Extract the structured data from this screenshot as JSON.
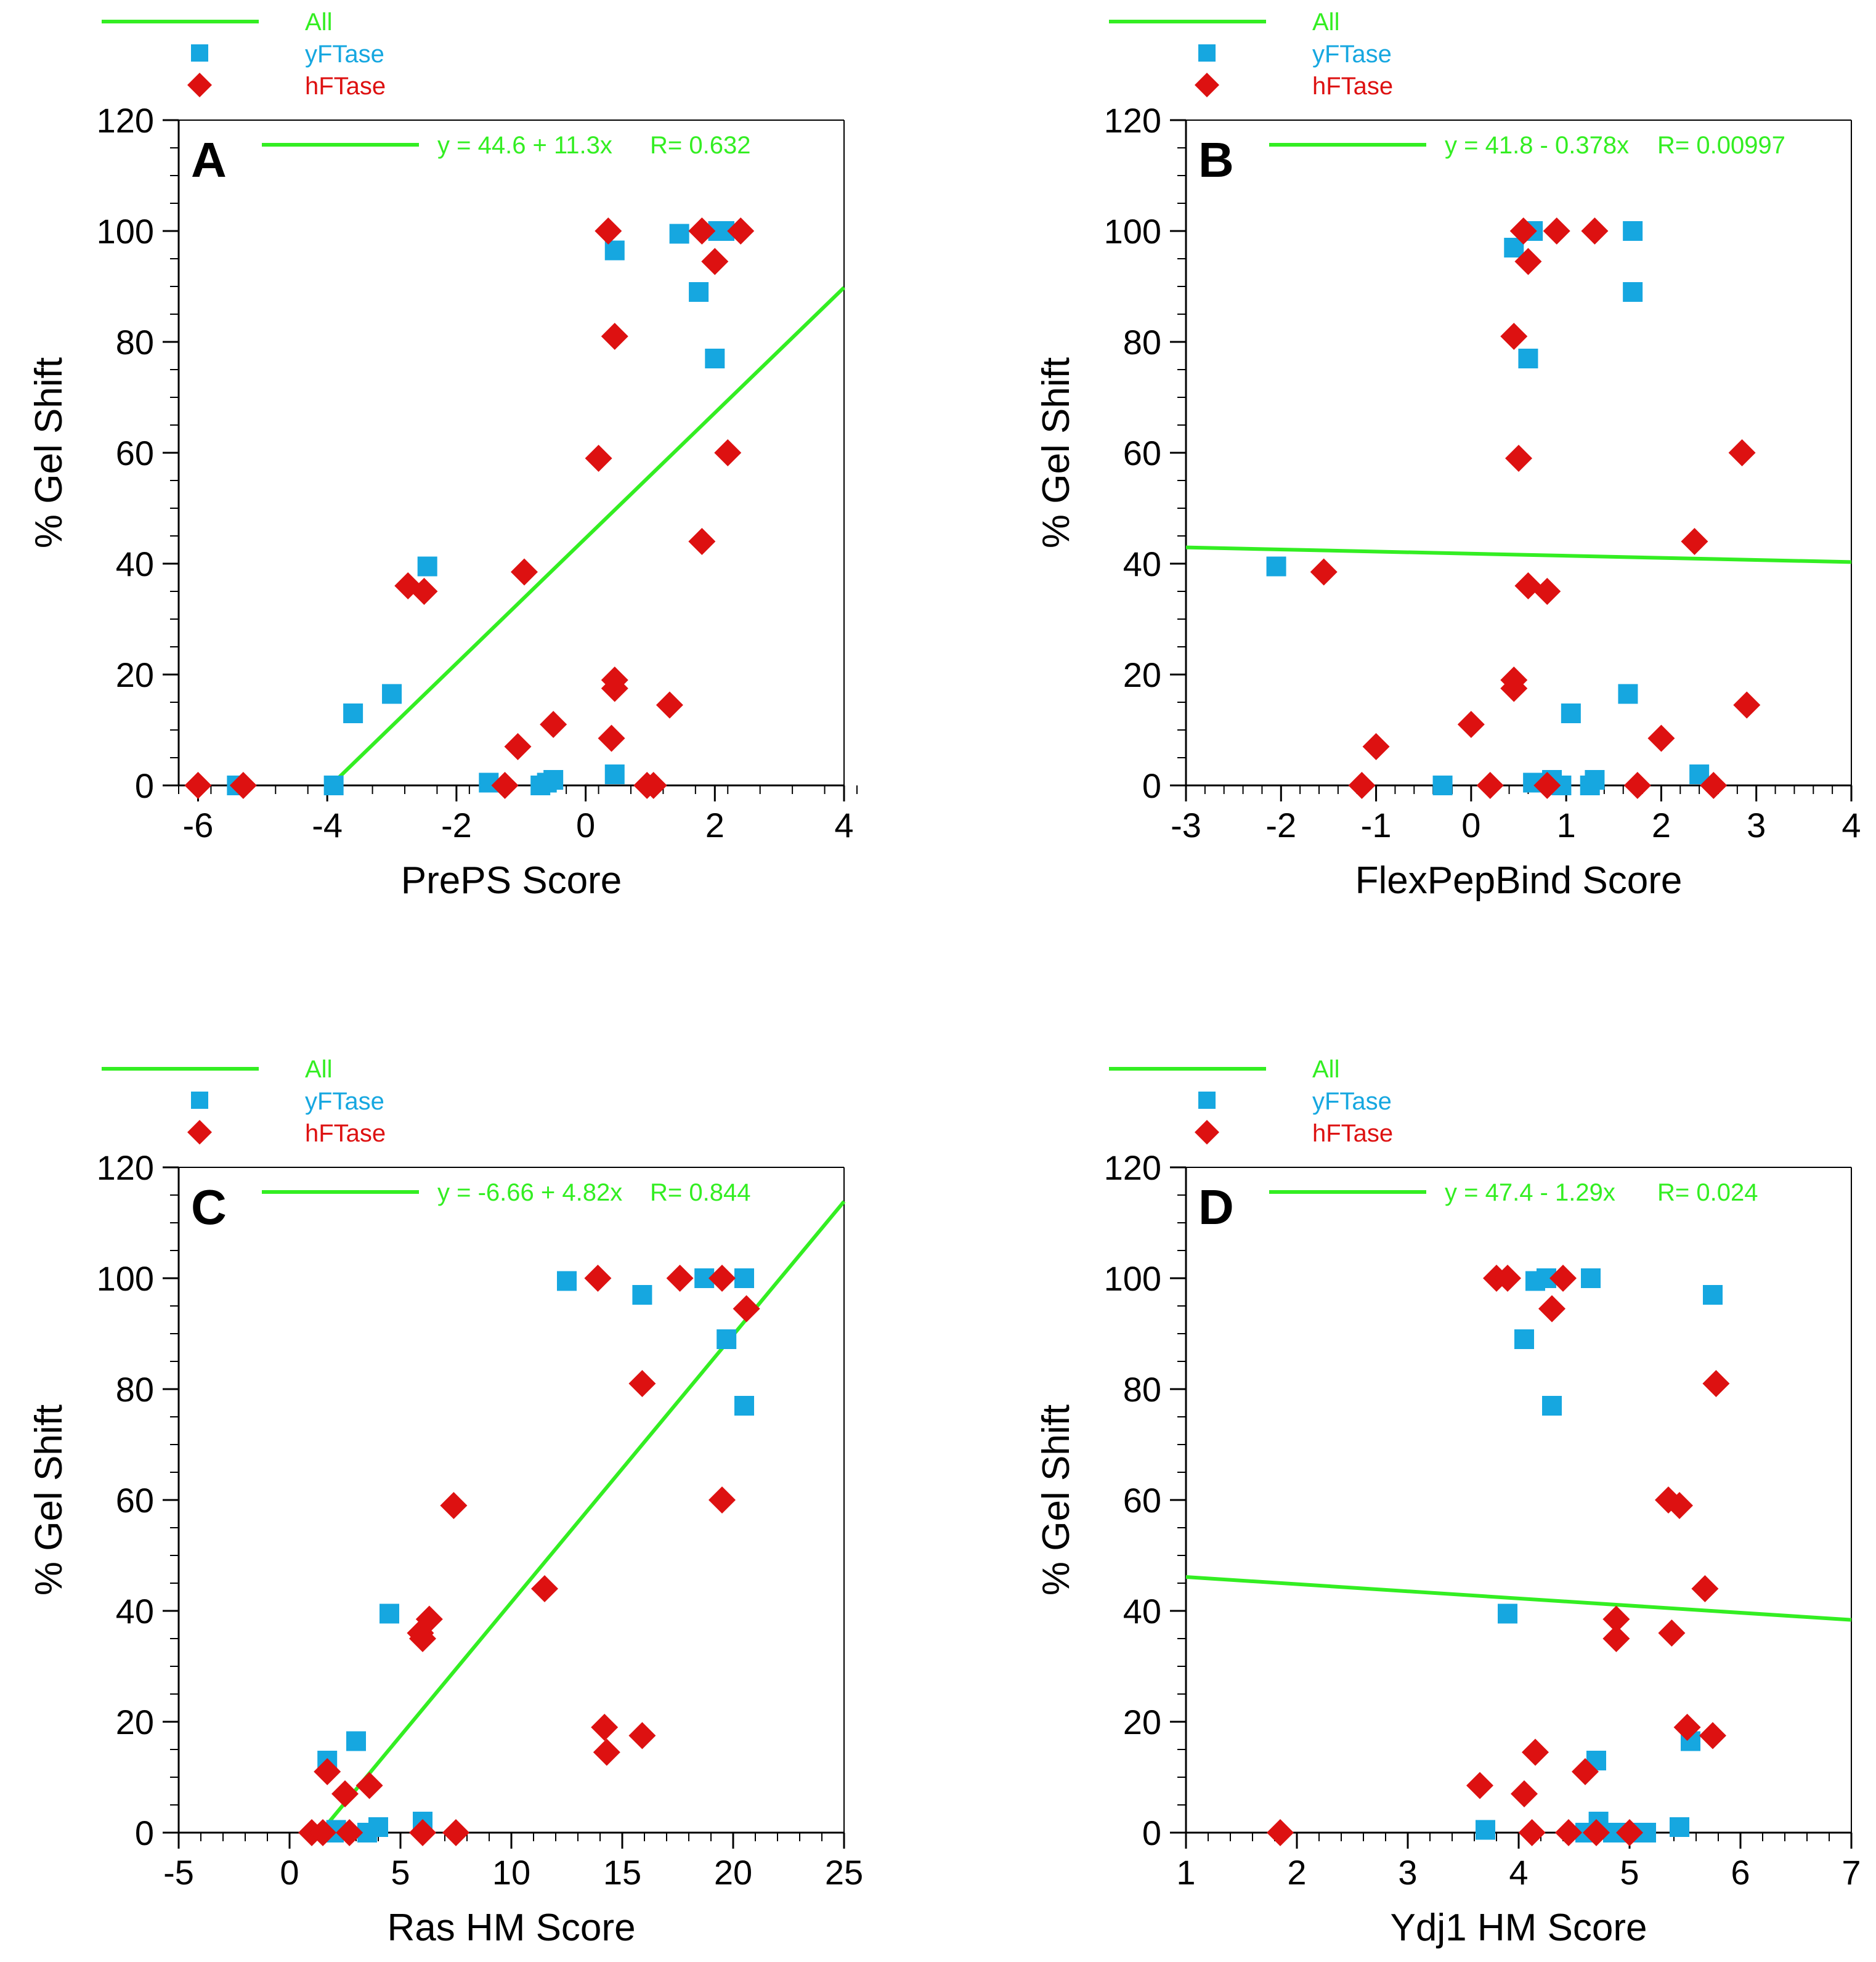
{
  "colors": {
    "all": "#33ee22",
    "yftase": "#16a7e0",
    "hftase": "#dd1111",
    "axis": "#000000"
  },
  "legend": {
    "all": "All",
    "yftase": "yFTase",
    "hftase": "hFTase"
  },
  "chart_data": [
    {
      "panel": "A",
      "type": "scatter",
      "xlabel": "PrePS Score",
      "ylabel": "% Gel Shift",
      "xlim": [
        -6.3,
        4
      ],
      "ylim": [
        0,
        120
      ],
      "xticks": [
        -6,
        -4,
        -2,
        0,
        2,
        4
      ],
      "xminor": 0.5,
      "yticks": [
        0,
        20,
        40,
        60,
        80,
        100,
        120
      ],
      "fit": {
        "label": "y = 44.6 + 11.3x",
        "r": "R= 0.632",
        "intercept": 44.6,
        "slope": 11.3,
        "x_start": -3.95,
        "x_end": 4
      },
      "series": [
        {
          "name": "yFTase",
          "marker": "square",
          "points": [
            [
              -5.4,
              0
            ],
            [
              -3.9,
              0
            ],
            [
              -3.6,
              13
            ],
            [
              -3.0,
              16.5
            ],
            [
              -2.45,
              39.5
            ],
            [
              -1.5,
              0.5
            ],
            [
              -0.7,
              0
            ],
            [
              -0.6,
              0.5
            ],
            [
              -0.5,
              1
            ],
            [
              0.45,
              96.5
            ],
            [
              0.45,
              2
            ],
            [
              1.45,
              99.5
            ],
            [
              1.75,
              89
            ],
            [
              2.0,
              77
            ],
            [
              2.05,
              100
            ],
            [
              2.15,
              100
            ]
          ]
        },
        {
          "name": "hFTase",
          "marker": "diamond",
          "points": [
            [
              -6.0,
              0
            ],
            [
              -5.3,
              0
            ],
            [
              -2.75,
              36
            ],
            [
              -2.5,
              35
            ],
            [
              -0.95,
              38.5
            ],
            [
              -1.05,
              7
            ],
            [
              -1.25,
              0
            ],
            [
              -0.5,
              11
            ],
            [
              0.2,
              59
            ],
            [
              0.35,
              100
            ],
            [
              0.45,
              81
            ],
            [
              0.45,
              19
            ],
            [
              0.45,
              17.5
            ],
            [
              0.4,
              8.5
            ],
            [
              0.95,
              0
            ],
            [
              1.05,
              0
            ],
            [
              1.3,
              14.5
            ],
            [
              1.8,
              100
            ],
            [
              1.8,
              44
            ],
            [
              2.0,
              94.5
            ],
            [
              2.2,
              60
            ],
            [
              2.4,
              100
            ]
          ]
        }
      ]
    },
    {
      "panel": "B",
      "type": "scatter",
      "xlabel": "FlexPepBind Score",
      "ylabel": "% Gel Shift",
      "xlim": [
        -3,
        4
      ],
      "ylim": [
        0,
        120
      ],
      "xticks": [
        -3,
        -2,
        -1,
        0,
        1,
        2,
        3,
        4
      ],
      "xminor": 0.2,
      "yticks": [
        0,
        20,
        40,
        60,
        80,
        100,
        120
      ],
      "fit": {
        "label": "y = 41.8 - 0.378x",
        "r": "R= 0.00997",
        "intercept": 41.8,
        "slope": -0.378,
        "x_start": -3,
        "x_end": 4
      },
      "series": [
        {
          "name": "yFTase",
          "marker": "square",
          "points": [
            [
              -2.05,
              39.5
            ],
            [
              -0.3,
              0
            ],
            [
              0.45,
              97
            ],
            [
              0.6,
              77
            ],
            [
              0.65,
              100
            ],
            [
              0.65,
              0.5
            ],
            [
              0.85,
              1
            ],
            [
              0.95,
              0
            ],
            [
              1.05,
              13
            ],
            [
              1.25,
              0
            ],
            [
              1.3,
              1
            ],
            [
              1.65,
              16.5
            ],
            [
              1.7,
              100
            ],
            [
              1.7,
              89
            ],
            [
              2.4,
              2
            ]
          ]
        },
        {
          "name": "hFTase",
          "marker": "diamond",
          "points": [
            [
              -1.55,
              38.5
            ],
            [
              -1.0,
              7
            ],
            [
              -1.15,
              0
            ],
            [
              0.0,
              11
            ],
            [
              0.2,
              0
            ],
            [
              0.45,
              81
            ],
            [
              0.45,
              19
            ],
            [
              0.45,
              17.5
            ],
            [
              0.5,
              59
            ],
            [
              0.55,
              100
            ],
            [
              0.6,
              36
            ],
            [
              0.6,
              94.5
            ],
            [
              0.8,
              35
            ],
            [
              0.8,
              0
            ],
            [
              0.9,
              100
            ],
            [
              1.3,
              100
            ],
            [
              1.75,
              0
            ],
            [
              2.0,
              8.5
            ],
            [
              2.35,
              44
            ],
            [
              2.55,
              0
            ],
            [
              2.85,
              60
            ],
            [
              2.9,
              14.5
            ]
          ]
        }
      ]
    },
    {
      "panel": "C",
      "type": "scatter",
      "xlabel": "Ras HM Score",
      "ylabel": "% Gel Shift",
      "xlim": [
        -5,
        25
      ],
      "ylim": [
        0,
        120
      ],
      "xticks": [
        -5,
        0,
        5,
        10,
        15,
        20,
        25
      ],
      "xminor": 1,
      "yticks": [
        0,
        20,
        40,
        60,
        80,
        100,
        120
      ],
      "fit": {
        "label": "y = -6.66 + 4.82x",
        "r": "R= 0.844",
        "intercept": -6.66,
        "slope": 4.82,
        "x_start": 1.38,
        "x_end": 25
      },
      "series": [
        {
          "name": "yFTase",
          "marker": "square",
          "points": [
            [
              1.7,
              13
            ],
            [
              2.0,
              0
            ],
            [
              2.1,
              0.5
            ],
            [
              3.0,
              16.5
            ],
            [
              3.5,
              0
            ],
            [
              4.0,
              1
            ],
            [
              4.5,
              39.5
            ],
            [
              6.0,
              2
            ],
            [
              12.5,
              99.5
            ],
            [
              15.9,
              97
            ],
            [
              18.7,
              100
            ],
            [
              19.7,
              89
            ],
            [
              20.5,
              100
            ],
            [
              20.5,
              77
            ]
          ]
        },
        {
          "name": "hFTase",
          "marker": "diamond",
          "points": [
            [
              1.0,
              0
            ],
            [
              1.5,
              0
            ],
            [
              1.7,
              11
            ],
            [
              2.5,
              7
            ],
            [
              2.7,
              0
            ],
            [
              3.6,
              8.5
            ],
            [
              5.9,
              36
            ],
            [
              6.0,
              35
            ],
            [
              6.3,
              38.5
            ],
            [
              6.0,
              0
            ],
            [
              7.4,
              59
            ],
            [
              7.5,
              0
            ],
            [
              11.5,
              44
            ],
            [
              13.9,
              100
            ],
            [
              14.2,
              19
            ],
            [
              14.3,
              14.5
            ],
            [
              15.9,
              81
            ],
            [
              15.9,
              17.5
            ],
            [
              17.6,
              100
            ],
            [
              19.5,
              100
            ],
            [
              19.5,
              60
            ],
            [
              20.6,
              94.5
            ]
          ]
        }
      ]
    },
    {
      "panel": "D",
      "type": "scatter",
      "xlabel": "Ydj1 HM Score",
      "ylabel": "% Gel Shift",
      "xlim": [
        1,
        7
      ],
      "ylim": [
        0,
        120
      ],
      "xticks": [
        1,
        2,
        3,
        4,
        5,
        6,
        7
      ],
      "xminor": 0.2,
      "yticks": [
        0,
        20,
        40,
        60,
        80,
        100,
        120
      ],
      "fit": {
        "label": "y = 47.4 - 1.29x",
        "r": "R= 0.024",
        "intercept": 47.4,
        "slope": -1.29,
        "x_start": 1,
        "x_end": 7
      },
      "series": [
        {
          "name": "yFTase",
          "marker": "square",
          "points": [
            [
              3.7,
              0.5
            ],
            [
              3.9,
              39.5
            ],
            [
              4.05,
              89
            ],
            [
              4.15,
              99.5
            ],
            [
              4.25,
              100
            ],
            [
              4.3,
              77
            ],
            [
              4.6,
              0
            ],
            [
              4.65,
              100
            ],
            [
              4.7,
              13
            ],
            [
              4.72,
              2
            ],
            [
              4.85,
              0
            ],
            [
              5.0,
              0
            ],
            [
              5.15,
              0
            ],
            [
              5.45,
              1
            ],
            [
              5.55,
              16.5
            ],
            [
              5.75,
              97
            ]
          ]
        },
        {
          "name": "hFTase",
          "marker": "diamond",
          "points": [
            [
              1.85,
              0
            ],
            [
              3.65,
              8.5
            ],
            [
              3.8,
              100
            ],
            [
              3.9,
              100
            ],
            [
              4.05,
              7
            ],
            [
              4.12,
              0
            ],
            [
              4.15,
              14.5
            ],
            [
              4.3,
              94.5
            ],
            [
              4.4,
              100
            ],
            [
              4.45,
              0
            ],
            [
              4.6,
              11
            ],
            [
              4.7,
              0
            ],
            [
              4.88,
              38.5
            ],
            [
              4.88,
              35
            ],
            [
              5.0,
              0
            ],
            [
              5.35,
              60
            ],
            [
              5.38,
              36
            ],
            [
              5.45,
              59
            ],
            [
              5.52,
              19
            ],
            [
              5.68,
              44
            ],
            [
              5.75,
              17.5
            ],
            [
              5.78,
              81
            ]
          ]
        }
      ]
    }
  ]
}
